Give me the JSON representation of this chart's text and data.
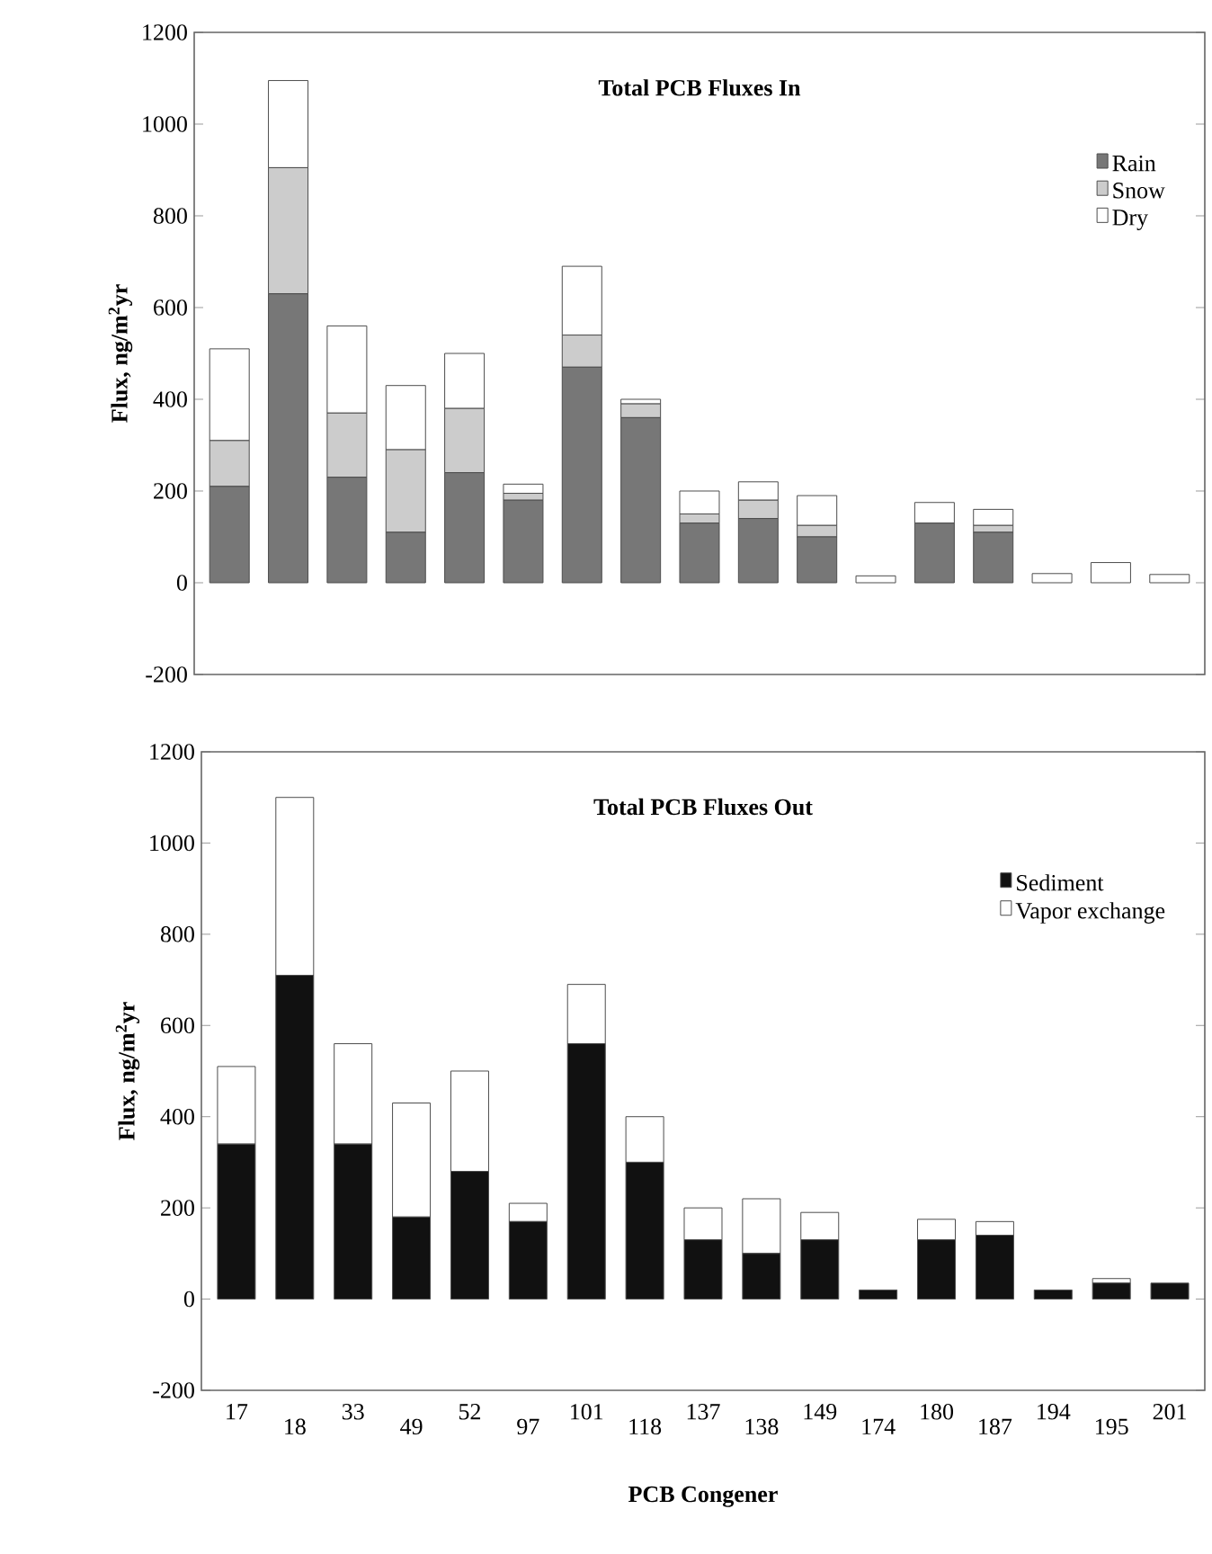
{
  "chart_data": [
    {
      "type": "bar",
      "title": "Total PCB Fluxes In",
      "ylabel": "Flux, ng/m$^{2}$yr",
      "stacked": true,
      "legend": "top right",
      "tick_labels": "y",
      "categories": [
        "17",
        "18",
        "33",
        "49",
        "52",
        "97",
        "101",
        "118",
        "137",
        "138",
        "149",
        "174",
        "180",
        "187",
        "194",
        "195",
        "201"
      ],
      "ylim": [
        -200,
        1200
      ],
      "yticks": [
        -200,
        0,
        200,
        400,
        600,
        800,
        1000,
        1200
      ],
      "series": [
        {
          "name": "Rain",
          "color": "#777777",
          "values": [
            210,
            630,
            230,
            110,
            240,
            180,
            470,
            360,
            130,
            140,
            100,
            0,
            130,
            110,
            0,
            0,
            0
          ]
        },
        {
          "name": "Snow",
          "color": "#cccccc",
          "values": [
            100,
            275,
            140,
            180,
            140,
            15,
            70,
            30,
            20,
            40,
            25,
            0,
            0,
            15,
            0,
            0,
            0
          ]
        },
        {
          "name": "Dry",
          "color": "#ffffff",
          "values": [
            200,
            190,
            190,
            140,
            120,
            20,
            150,
            10,
            50,
            40,
            65,
            15,
            45,
            35,
            20,
            44,
            18
          ]
        }
      ]
    },
    {
      "type": "bar",
      "title": "Total PCB Fluxes Out",
      "ylabel": "Flux, ng/m$^{2}$yr",
      "xlabel": "PCB Congener",
      "stacked": true,
      "legend": "top right",
      "categories": [
        "17",
        "18",
        "33",
        "49",
        "52",
        "97",
        "101",
        "118",
        "137",
        "138",
        "149",
        "174",
        "180",
        "187",
        "194",
        "195",
        "201"
      ],
      "ylim": [
        -200,
        1200
      ],
      "yticks": [
        -200,
        0,
        200,
        400,
        600,
        800,
        1000,
        1200
      ],
      "series": [
        {
          "name": "Sediment",
          "color": "#111111",
          "values": [
            340,
            710,
            340,
            180,
            280,
            170,
            560,
            300,
            130,
            100,
            130,
            20,
            130,
            140,
            20,
            35,
            35
          ]
        },
        {
          "name": "Vapor exchange",
          "color": "#ffffff",
          "values": [
            170,
            390,
            220,
            250,
            220,
            40,
            130,
            100,
            70,
            120,
            60,
            0,
            45,
            30,
            0,
            10,
            0
          ]
        }
      ]
    }
  ]
}
